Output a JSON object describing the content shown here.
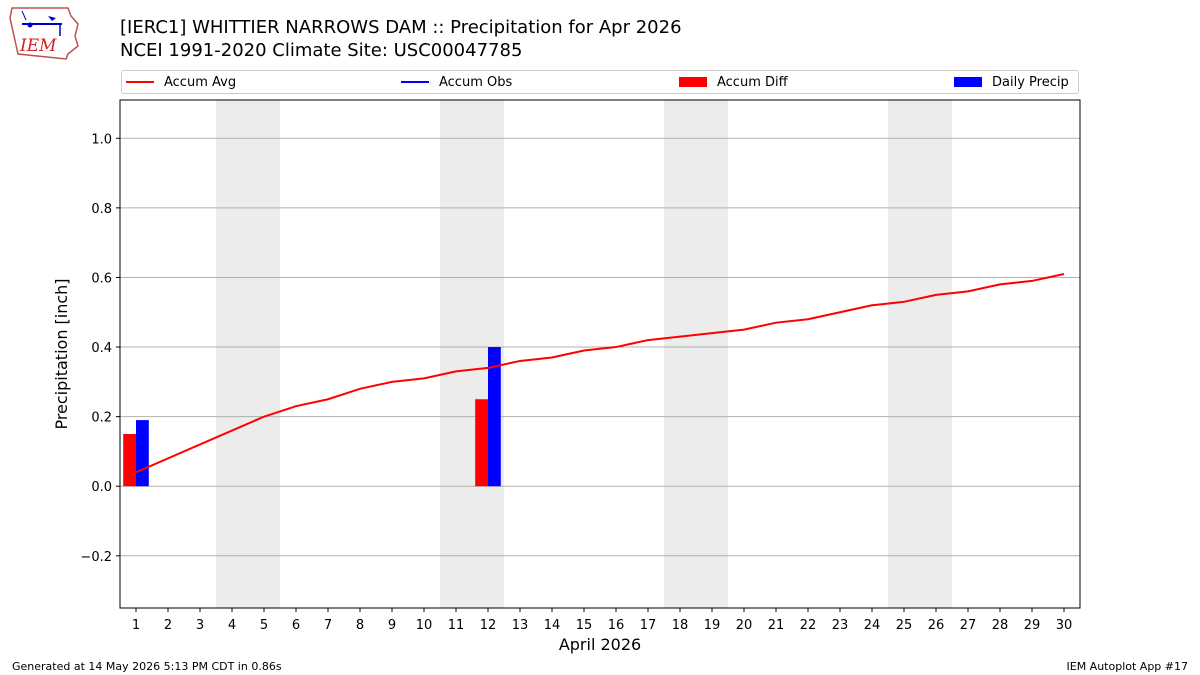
{
  "header": {
    "title_line1": "[IERC1] WHITTIER NARROWS DAM :: Precipitation for Apr 2026",
    "title_line2": "NCEI 1991-2020 Climate Site: USC00047785",
    "logo_text": "IEM"
  },
  "legend": {
    "accum_avg": "Accum Avg",
    "accum_obs": "Accum Obs",
    "accum_diff": "Accum Diff",
    "daily_precip": "Daily Precip"
  },
  "footer": {
    "generated": "Generated at 14 May 2026 5:13 PM CDT in 0.86s",
    "app": "IEM Autoplot App #17"
  },
  "colors": {
    "avg": "#ff0000",
    "obs": "#0000ff",
    "diff": "#ff0000",
    "daily": "#0000ff",
    "weekend_band": "#ececec",
    "grid": "#b0b0b0"
  },
  "chart_data": {
    "type": "bar",
    "xlabel": "April 2026",
    "ylabel": "Precipitation [inch]",
    "xlim": [
      0.5,
      30.5
    ],
    "ylim": [
      -0.35,
      1.11
    ],
    "yticks": [
      -0.2,
      0.0,
      0.2,
      0.4,
      0.6,
      0.8,
      1.0
    ],
    "ytick_labels": [
      "−0.2",
      "0.0",
      "0.2",
      "0.4",
      "0.6",
      "0.8",
      "1.0"
    ],
    "days": [
      1,
      2,
      3,
      4,
      5,
      6,
      7,
      8,
      9,
      10,
      11,
      12,
      13,
      14,
      15,
      16,
      17,
      18,
      19,
      20,
      21,
      22,
      23,
      24,
      25,
      26,
      27,
      28,
      29,
      30
    ],
    "weekend_bands": [
      [
        4,
        5
      ],
      [
        11,
        12
      ],
      [
        18,
        19
      ],
      [
        25,
        26
      ]
    ],
    "grid": "horizontal",
    "legend_position": "top",
    "series": [
      {
        "name": "Accum Avg",
        "kind": "line",
        "values": [
          0.04,
          0.08,
          0.12,
          0.16,
          0.2,
          0.23,
          0.25,
          0.28,
          0.3,
          0.31,
          0.33,
          0.34,
          0.36,
          0.37,
          0.39,
          0.4,
          0.42,
          0.43,
          0.44,
          0.45,
          0.47,
          0.48,
          0.5,
          0.52,
          0.53,
          0.55,
          0.56,
          0.58,
          0.59,
          0.61
        ]
      },
      {
        "name": "Accum Diff",
        "kind": "bar",
        "points": [
          {
            "day": 1,
            "value": 0.15
          },
          {
            "day": 12,
            "value": 0.25
          }
        ]
      },
      {
        "name": "Daily Precip",
        "kind": "bar",
        "points": [
          {
            "day": 1,
            "value": 0.19
          },
          {
            "day": 12,
            "value": 0.4
          }
        ]
      }
    ]
  }
}
